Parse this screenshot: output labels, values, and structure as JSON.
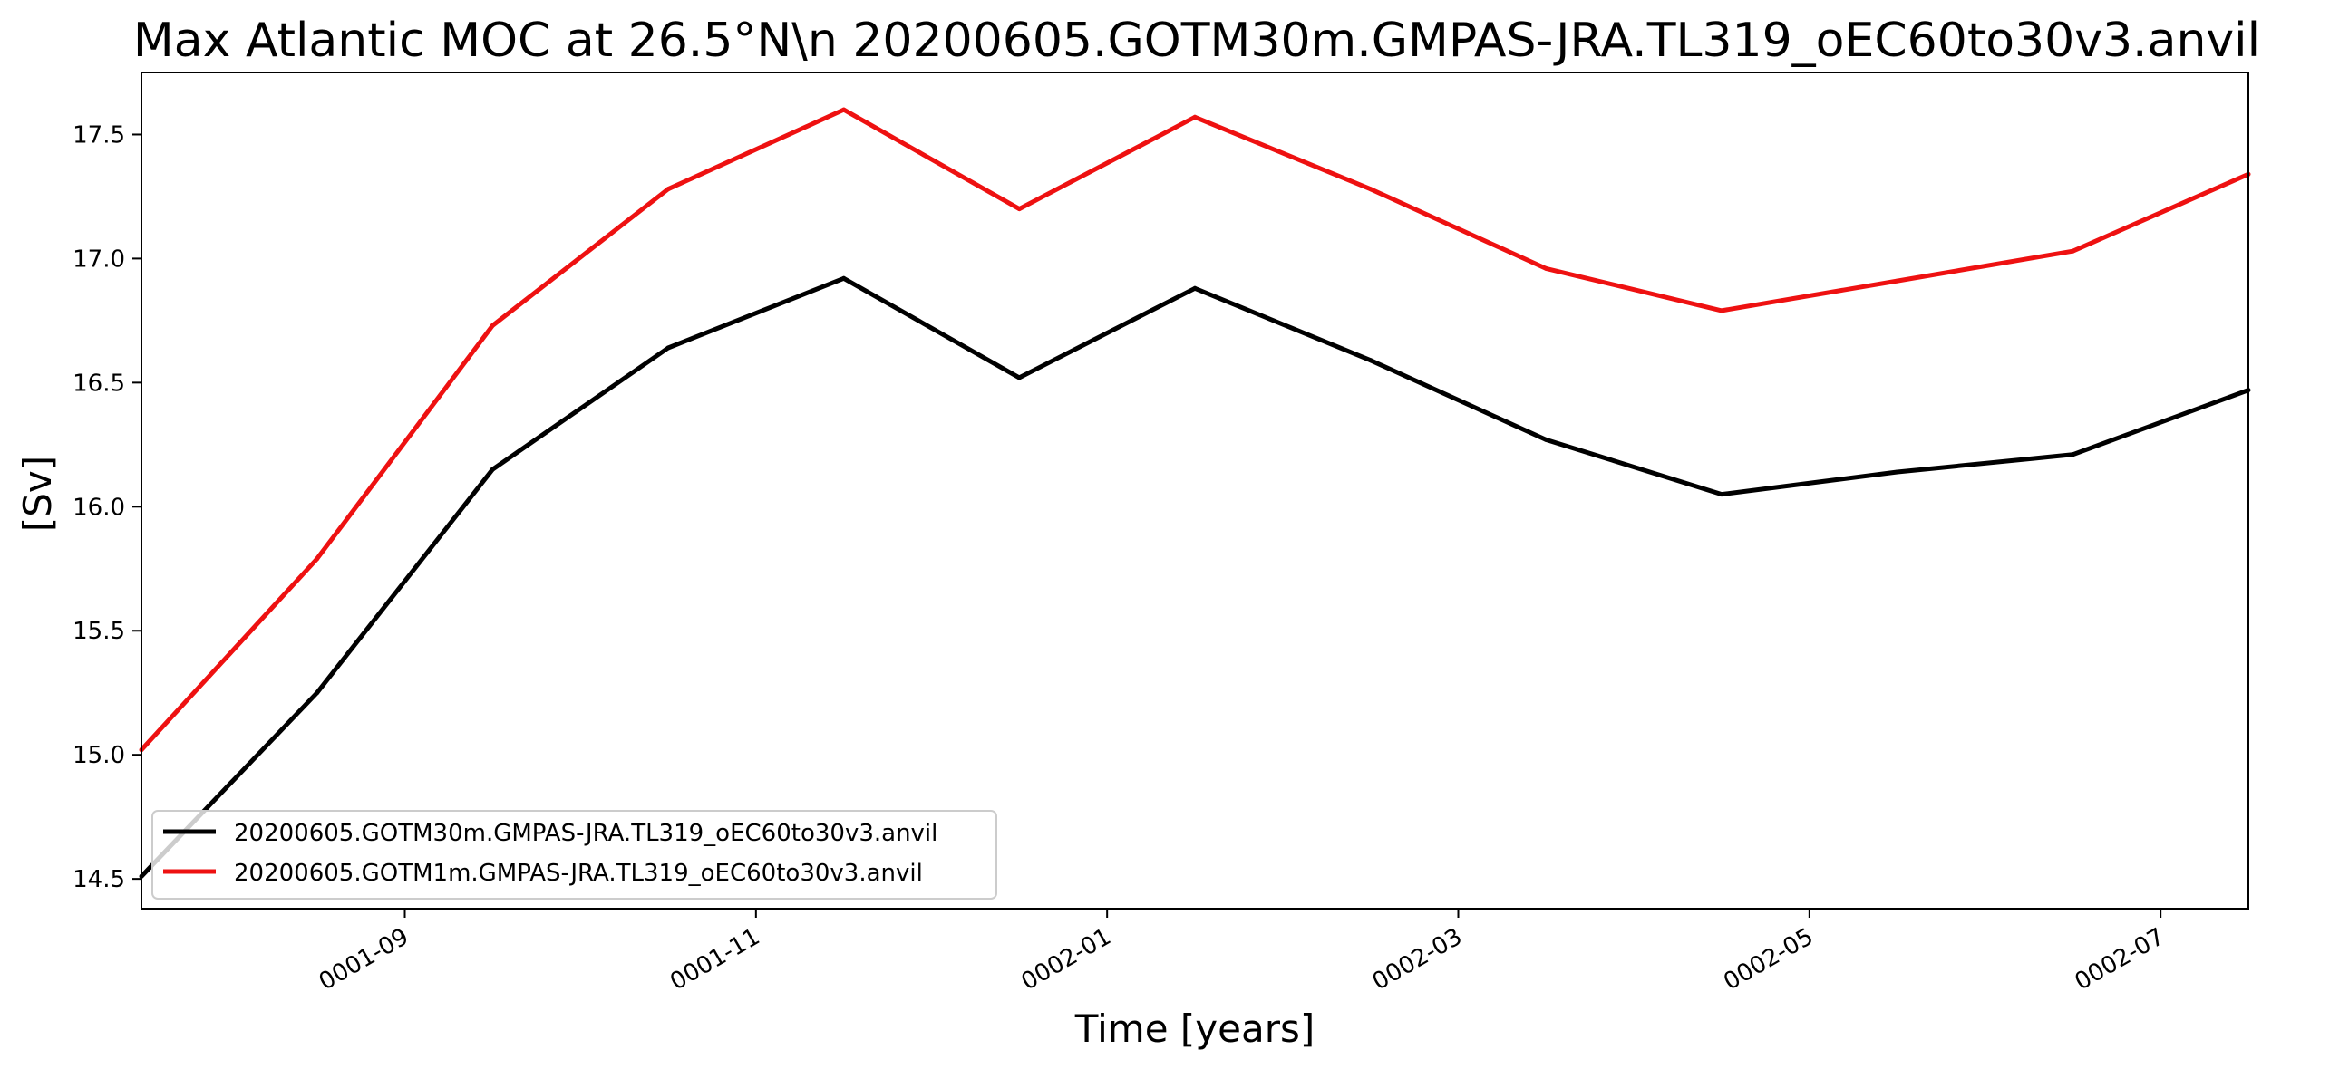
{
  "chart_data": {
    "type": "line",
    "title": "Max Atlantic MOC at 26.5°N\\n 20200605.GOTM30m.GMPAS-JRA.TL319_oEC60to30v3.anvil",
    "xlabel": "Time [years]",
    "ylabel": "[Sv]",
    "x_unit": "months since 0001-01 (0001-09 = 8)",
    "xlim": [
      6.5,
      18.5
    ],
    "ylim": [
      14.38,
      17.75
    ],
    "x_ticks": [
      {
        "value": 8,
        "label": "0001-09"
      },
      {
        "value": 10,
        "label": "0001-11"
      },
      {
        "value": 12,
        "label": "0002-01"
      },
      {
        "value": 14,
        "label": "0002-03"
      },
      {
        "value": 16,
        "label": "0002-05"
      },
      {
        "value": 18,
        "label": "0002-07"
      }
    ],
    "y_ticks": [
      {
        "value": 14.5,
        "label": "14.5"
      },
      {
        "value": 15.0,
        "label": "15.0"
      },
      {
        "value": 15.5,
        "label": "15.5"
      },
      {
        "value": 16.0,
        "label": "16.0"
      },
      {
        "value": 16.5,
        "label": "16.5"
      },
      {
        "value": 17.0,
        "label": "17.0"
      },
      {
        "value": 17.5,
        "label": "17.5"
      }
    ],
    "x": [
      6.5,
      7.5,
      8.5,
      9.5,
      10.5,
      11.5,
      12.5,
      13.5,
      14.5,
      15.5,
      16.5,
      17.5,
      18.5
    ],
    "series": [
      {
        "name": "20200605.GOTM30m.GMPAS-JRA.TL319_oEC60to30v3.anvil",
        "color": "#000000",
        "values": [
          14.51,
          15.25,
          16.15,
          16.64,
          16.92,
          16.52,
          16.88,
          16.59,
          16.27,
          16.05,
          16.14,
          16.21,
          16.47
        ]
      },
      {
        "name": "20200605.GOTM1m.GMPAS-JRA.TL319_oEC60to30v3.anvil",
        "color": "#ee1111",
        "values": [
          15.02,
          15.79,
          16.73,
          17.28,
          17.6,
          17.2,
          17.57,
          17.28,
          16.96,
          16.79,
          16.91,
          17.03,
          17.34
        ]
      }
    ],
    "grid": false,
    "legend_position": "lower-left"
  }
}
